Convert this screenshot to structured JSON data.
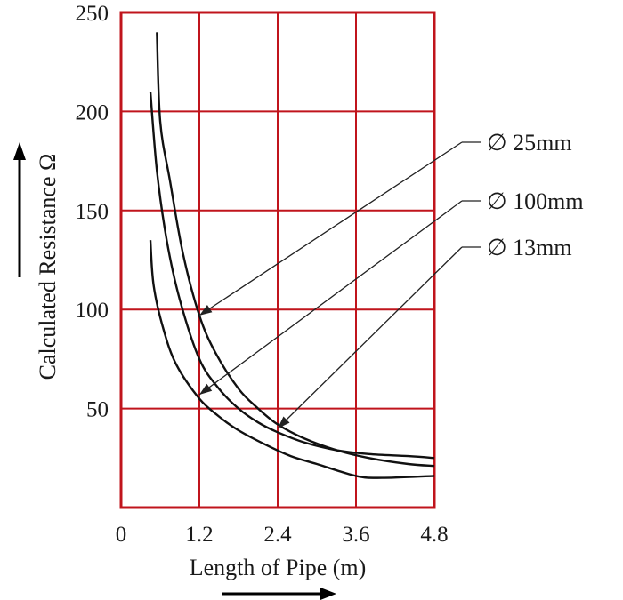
{
  "chart_data": {
    "type": "line",
    "xlabel": "Length of Pipe (m)",
    "ylabel": "Calculated Resistance Ω",
    "xlim": [
      0,
      4.8
    ],
    "ylim": [
      0,
      250
    ],
    "x_ticks": [
      "0",
      "1.2",
      "2.4",
      "3.6",
      "4.8"
    ],
    "y_ticks": [
      "50",
      "100",
      "150",
      "200",
      "250"
    ],
    "grid": true,
    "colors": {
      "grid": "#c0141c",
      "curves": "#111111",
      "background": "#ffffff"
    },
    "series": [
      {
        "name": "∅ 25mm",
        "points": [
          [
            0.55,
            240
          ],
          [
            0.6,
            195
          ],
          [
            0.75,
            165
          ],
          [
            0.95,
            128
          ],
          [
            1.2,
            97
          ],
          [
            1.45,
            78
          ],
          [
            1.8,
            60
          ],
          [
            2.1,
            50
          ],
          [
            2.4,
            42
          ],
          [
            2.8,
            35
          ],
          [
            3.3,
            29
          ],
          [
            3.8,
            25
          ],
          [
            4.4,
            22
          ],
          [
            4.8,
            21
          ]
        ]
      },
      {
        "name": "∅ 100mm",
        "points": [
          [
            0.45,
            210
          ],
          [
            0.55,
            170
          ],
          [
            0.7,
            135
          ],
          [
            0.9,
            105
          ],
          [
            1.2,
            75
          ],
          [
            1.5,
            60
          ],
          [
            1.8,
            50
          ],
          [
            2.1,
            43
          ],
          [
            2.4,
            38
          ],
          [
            2.8,
            33
          ],
          [
            3.3,
            29
          ],
          [
            3.8,
            27
          ],
          [
            4.4,
            26
          ],
          [
            4.8,
            25
          ]
        ]
      },
      {
        "name": "∅ 13mm",
        "points": [
          [
            0.45,
            135
          ],
          [
            0.5,
            112
          ],
          [
            0.65,
            90
          ],
          [
            0.85,
            72
          ],
          [
            1.2,
            55
          ],
          [
            1.5,
            46
          ],
          [
            1.8,
            39
          ],
          [
            2.2,
            32
          ],
          [
            2.6,
            26
          ],
          [
            3.0,
            22
          ],
          [
            3.6,
            16
          ],
          [
            4.0,
            15
          ],
          [
            4.8,
            16
          ]
        ]
      }
    ],
    "annotations": [
      {
        "label": "∅ 25mm",
        "points_to": [
          1.2,
          97
        ]
      },
      {
        "label": "∅ 100mm",
        "points_to": [
          1.2,
          57
        ]
      },
      {
        "label": "∅ 13mm",
        "points_to": [
          2.4,
          40
        ]
      }
    ]
  }
}
